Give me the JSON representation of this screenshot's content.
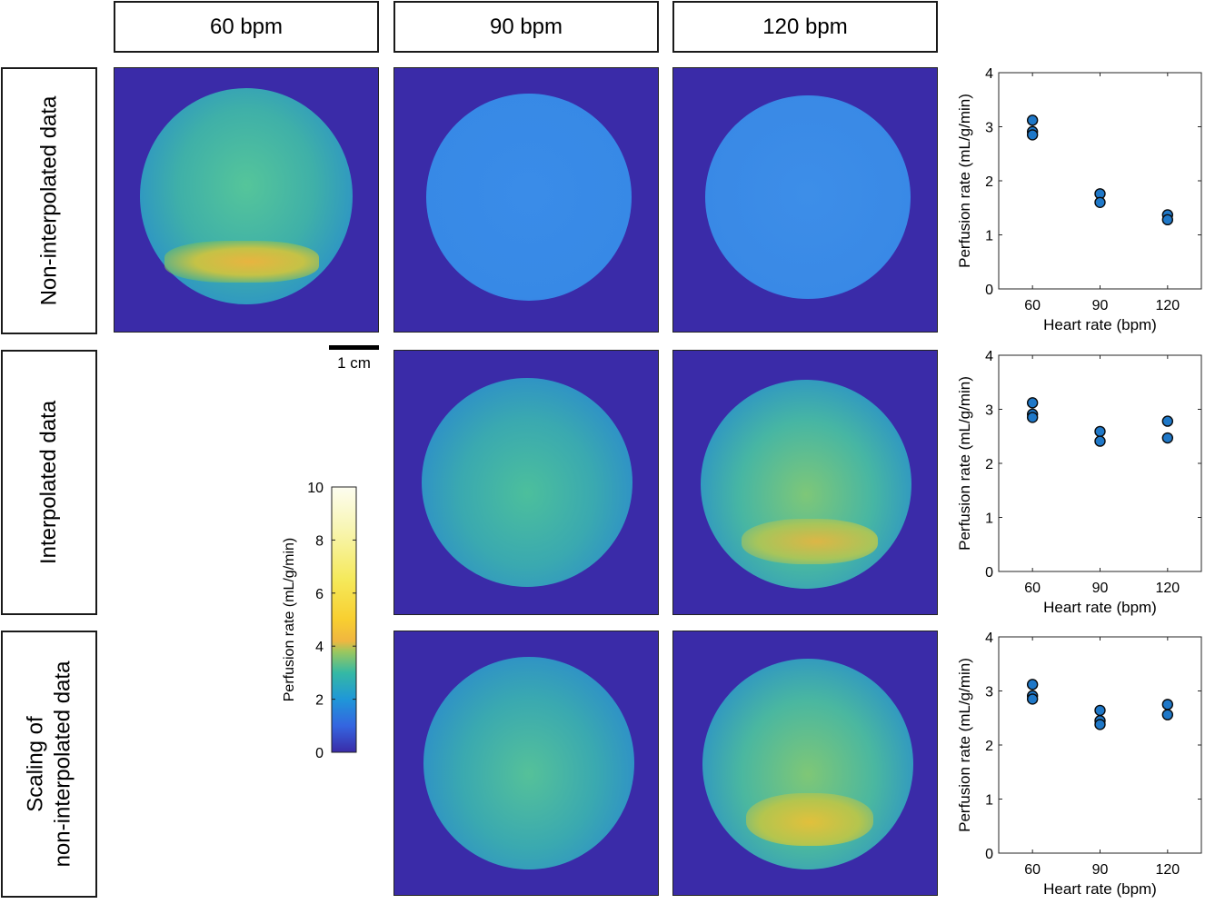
{
  "columns": [
    "60 bpm",
    "90 bpm",
    "120 bpm"
  ],
  "rows": [
    "Non-interpolated data",
    "Interpolated data",
    "Scaling of",
    "non-interpolated data"
  ],
  "scalebar_label": "1 cm",
  "colorbar": {
    "label": "Perfusion rate (mL/g/min)",
    "ticks": [
      "10",
      "8",
      "6",
      "4",
      "2",
      "0"
    ],
    "range": [
      0,
      10
    ]
  },
  "colors": {
    "background": "#3a2ba8",
    "marker": "#1f78c8",
    "marker_edge": "#0a0a0a"
  },
  "chart_data": [
    {
      "type": "scatter",
      "row": "Non-interpolated data",
      "xlabel": "Heart rate (bpm)",
      "ylabel": "Perfusion rate (mL/g/min)",
      "xticks": [
        "60",
        "90",
        "120"
      ],
      "yticks": [
        "0",
        "1",
        "2",
        "3",
        "4"
      ],
      "xlim": [
        45,
        135
      ],
      "ylim": [
        0,
        4
      ],
      "points": [
        [
          60,
          3.12
        ],
        [
          60,
          2.91
        ],
        [
          60,
          2.85
        ],
        [
          90,
          1.76
        ],
        [
          90,
          1.6
        ],
        [
          120,
          1.37
        ],
        [
          120,
          1.28
        ]
      ]
    },
    {
      "type": "scatter",
      "row": "Interpolated data",
      "xlabel": "Heart rate (bpm)",
      "ylabel": "Perfusion rate (mL/g/min)",
      "xticks": [
        "60",
        "90",
        "120"
      ],
      "yticks": [
        "0",
        "1",
        "2",
        "3",
        "4"
      ],
      "xlim": [
        45,
        135
      ],
      "ylim": [
        0,
        4
      ],
      "points": [
        [
          60,
          3.12
        ],
        [
          60,
          2.91
        ],
        [
          60,
          2.85
        ],
        [
          90,
          2.59
        ],
        [
          90,
          2.41
        ],
        [
          120,
          2.78
        ],
        [
          120,
          2.47
        ]
      ]
    },
    {
      "type": "scatter",
      "row": "Scaling of non-interpolated data",
      "xlabel": "Heart rate (bpm)",
      "ylabel": "Perfusion rate (mL/g/min)",
      "xticks": [
        "60",
        "90",
        "120"
      ],
      "yticks": [
        "0",
        "1",
        "2",
        "3",
        "4"
      ],
      "xlim": [
        45,
        135
      ],
      "ylim": [
        0,
        4
      ],
      "points": [
        [
          60,
          3.12
        ],
        [
          60,
          2.91
        ],
        [
          60,
          2.85
        ],
        [
          90,
          2.64
        ],
        [
          90,
          2.45
        ],
        [
          90,
          2.38
        ],
        [
          120,
          2.75
        ],
        [
          120,
          2.56
        ]
      ]
    }
  ]
}
